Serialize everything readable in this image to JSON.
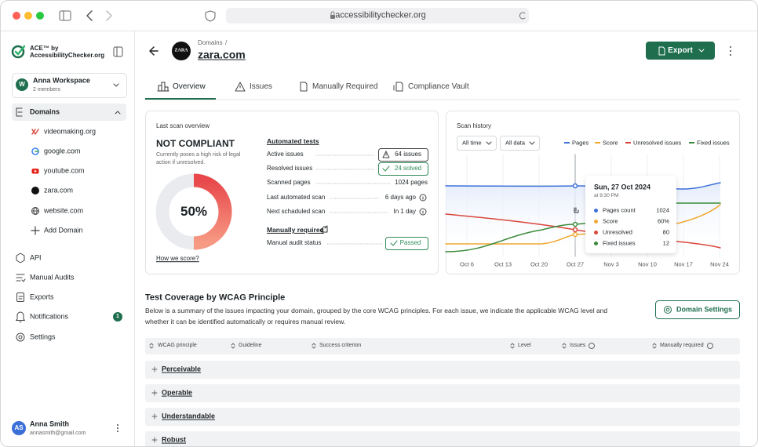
{
  "browser": {
    "url": "accessibilitychecker.org"
  },
  "sidebar": {
    "brand_line1": "ACE™ by",
    "brand_line2": "AccessibilityChecker.org",
    "workspace": {
      "initial": "W",
      "name": "Anna Workspace",
      "members": "2 members"
    },
    "domains_label": "Domains",
    "domains": [
      "videomaking.org",
      "google.com",
      "youtube.com",
      "zara.com",
      "website.com"
    ],
    "add_domain": "Add Domain",
    "nav": [
      "API",
      "Manual Audits",
      "Exports",
      "Notifications",
      "Settings"
    ],
    "notifications_badge": "1",
    "user": {
      "initials": "AS",
      "name": "Anna Smith",
      "email": "annasmith@gmail.com"
    }
  },
  "header": {
    "breadcrumb": "Domains",
    "separator": "/",
    "logo": "ZARA",
    "domain": "zara.com",
    "export": "Export"
  },
  "tabs": [
    "Overview",
    "Issues",
    "Manually Required",
    "Compliance Vault"
  ],
  "overview": {
    "title": "Last scan overview",
    "status": "NOT COMPLIANT",
    "status_note": "Currently poses a high risk of legal action if unresolved.",
    "score": "50%",
    "how": "How we score?",
    "automated_title": "Automated tests",
    "rows": [
      {
        "label": "Active issues",
        "value": "64 issues"
      },
      {
        "label": "Resolved issues",
        "value": "24 solved"
      },
      {
        "label": "Scanned pages",
        "value": "1024 pages"
      },
      {
        "label": "Last automated scan",
        "value": "6 days ago"
      },
      {
        "label": "Next schaduled scan",
        "value": "In 1 day"
      }
    ],
    "manual_title": "Manually required",
    "manual_row": {
      "label": "Manual audit status",
      "value": "Passed"
    }
  },
  "history": {
    "title": "Scan history",
    "filters": [
      "All time",
      "All data"
    ],
    "legend": [
      {
        "name": "Pages",
        "color": "#3b6fd8"
      },
      {
        "name": "Score",
        "color": "#f0a830"
      },
      {
        "name": "Unresolved issues",
        "color": "#d9463b"
      },
      {
        "name": "Fixed issues",
        "color": "#3d8b3d"
      }
    ],
    "x_labels": [
      "Oct 6",
      "Oct 13",
      "Oct 20",
      "Oct 27",
      "Nov 3",
      "Nov 10",
      "Nov 17",
      "Nov 24"
    ],
    "tooltip": {
      "date": "Sun, 27 Oct 2024",
      "time": "at 9:30 PM",
      "rows": [
        {
          "label": "Pages count",
          "value": "1024"
        },
        {
          "label": "Score",
          "value": "60%"
        },
        {
          "label": "Unresolved",
          "value": "80"
        },
        {
          "label": "Fixed issues",
          "value": "12"
        }
      ]
    }
  },
  "coverage": {
    "title": "Test Coverage by WCAG Principle",
    "description": "Below is a summary of the issues impacting your domain, grouped by the core WCAG principles. For each issue, we indicate the applicable WCAG level and whether it can be identified automatically or requires manual review.",
    "button": "Domain Settings",
    "columns": [
      "WCAG principle",
      "Guideline",
      "Success criterion",
      "Level",
      "Issues",
      "Manually required"
    ],
    "rows": [
      "Perceivable",
      "Operable",
      "Understandable",
      "Robust"
    ]
  }
}
